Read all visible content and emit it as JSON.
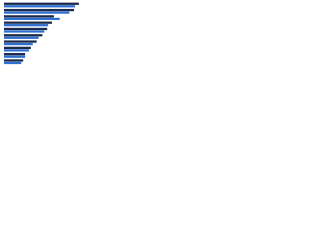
{
  "chart_data": {
    "type": "hbar",
    "categories": [
      null,
      null,
      null,
      null,
      null,
      null,
      null,
      null,
      null,
      null
    ],
    "series": [
      {
        "color": "#1b2a4a",
        "values": [
          78,
          73,
          52,
          50,
          45,
          40,
          34,
          28,
          22,
          20
        ]
      },
      {
        "color": "#2f6fd0",
        "values": [
          74,
          68,
          58,
          46,
          42,
          36,
          30,
          26,
          22,
          18
        ]
      }
    ],
    "xlim": [
      0,
      100
    ]
  }
}
